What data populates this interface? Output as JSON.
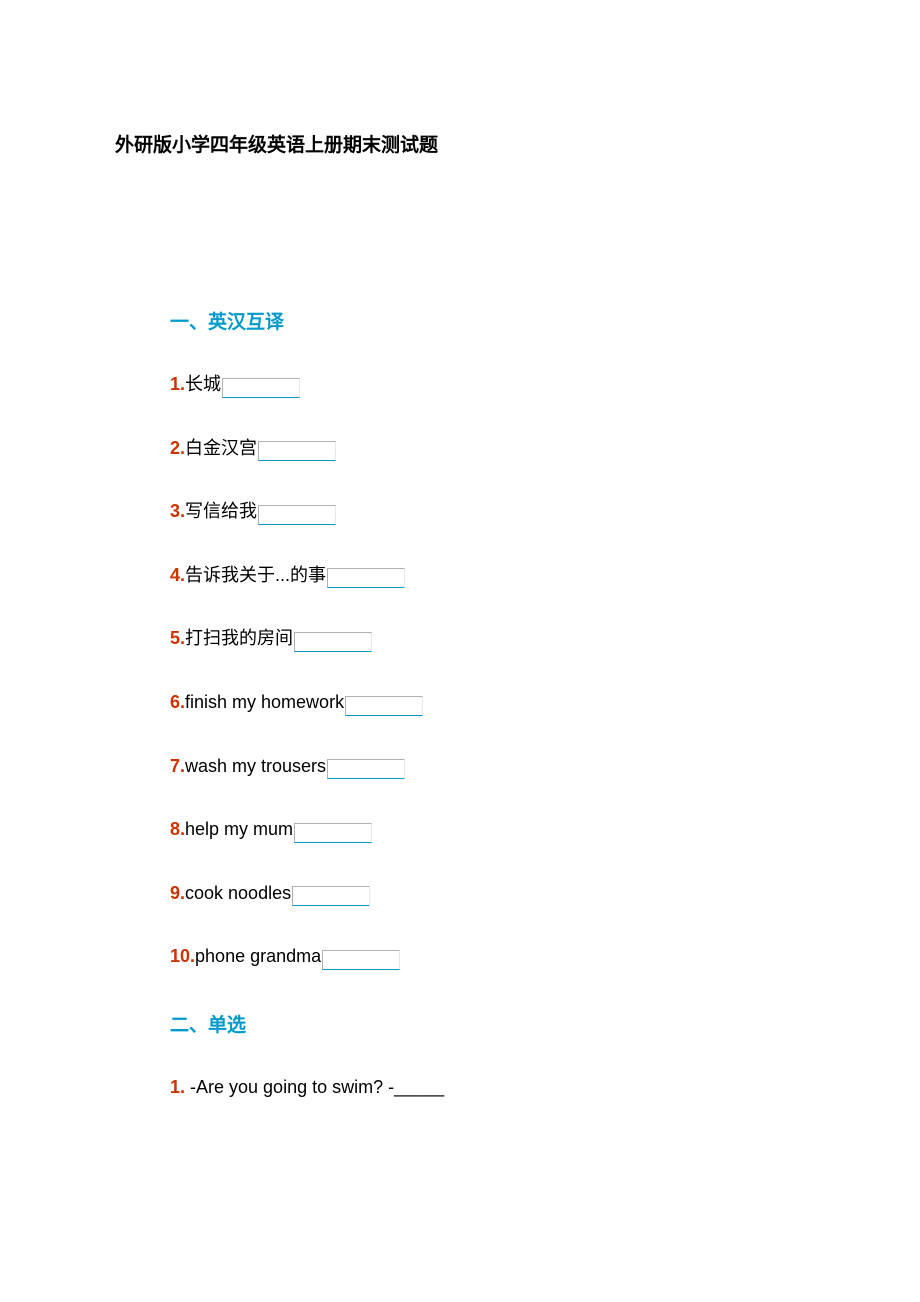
{
  "page_title": "外研版小学四年级英语上册期末测试题",
  "section1": {
    "heading": "一、英汉互译",
    "questions": [
      {
        "num": "1.",
        "text": "长城"
      },
      {
        "num": "2.",
        "text": "白金汉宫"
      },
      {
        "num": "3.",
        "text": "写信给我"
      },
      {
        "num": "4.",
        "text": "告诉我关于...的事"
      },
      {
        "num": "5.",
        "text": "打扫我的房间"
      },
      {
        "num": "6.",
        "text": "finish my homework"
      },
      {
        "num": "7.",
        "text": "wash my trousers"
      },
      {
        "num": "8.",
        "text": "help my mum"
      },
      {
        "num": "9.",
        "text": "cook noodles"
      },
      {
        "num": "10.",
        "text": "phone grandma"
      }
    ]
  },
  "section2": {
    "heading": "二、单选",
    "questions": [
      {
        "num": "1.",
        "text": " -Are you going to swim? -_____"
      }
    ]
  },
  "colors": {
    "title_color": "#000000",
    "section_heading_color": "#0099cc",
    "question_num_color": "#cc3300",
    "question_text_color": "#000000",
    "input_border_top": "#b0b0b0",
    "input_border_bottom": "#0099cc",
    "background": "#ffffff"
  }
}
